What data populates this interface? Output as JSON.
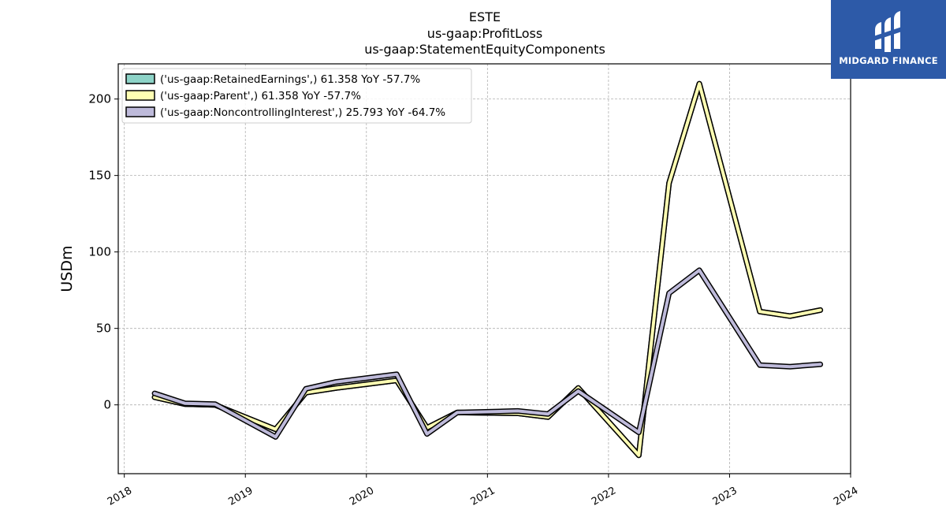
{
  "logo": {
    "text": "MIDGARD FINANCE",
    "background": "#2d5aa8"
  },
  "chart_data": {
    "type": "line",
    "title_lines": [
      "ESTE",
      "us-gaap:ProfitLoss",
      "us-gaap:StatementEquityComponents"
    ],
    "xlabel": "",
    "ylabel": "USDm",
    "xlim": [
      2017.95,
      2024.0
    ],
    "ylim": [
      -45,
      223
    ],
    "x_ticks": [
      2018,
      2019,
      2020,
      2021,
      2022,
      2023,
      2024
    ],
    "x_tick_labels": [
      "2018",
      "2019",
      "2020",
      "2021",
      "2022",
      "2023",
      "2024"
    ],
    "y_ticks": [
      0,
      50,
      100,
      150,
      200
    ],
    "y_tick_labels": [
      "0",
      "50",
      "100",
      "150",
      "200"
    ],
    "grid": true,
    "legend_position": "top-left",
    "series": [
      {
        "name": "('us-gaap:RetainedEarnings',) 61.358 YoY -57.7%",
        "color": "#8dd3c7",
        "x": [
          2018.25,
          2018.5,
          2018.75,
          2019.25,
          2019.5,
          2019.75,
          2020.25,
          2020.5,
          2020.75,
          2021.25,
          2021.5,
          2021.75,
          2022.25,
          2022.5,
          2022.75,
          2023.25,
          2023.5,
          2023.75
        ],
        "values": [
          5,
          0.5,
          0,
          -16,
          8,
          11,
          16,
          -15,
          -5,
          -5.5,
          -8,
          11,
          -33,
          145,
          210,
          61,
          58,
          62
        ]
      },
      {
        "name": "('us-gaap:Parent',) 61.358 YoY -57.7%",
        "color": "#ffffb3",
        "x": [
          2018.25,
          2018.5,
          2018.75,
          2019.25,
          2019.5,
          2019.75,
          2020.25,
          2020.5,
          2020.75,
          2021.25,
          2021.5,
          2021.75,
          2022.25,
          2022.5,
          2022.75,
          2023.25,
          2023.5,
          2023.75
        ],
        "values": [
          5,
          0.5,
          0,
          -16,
          8,
          11,
          16,
          -15,
          -5,
          -5.5,
          -8,
          11,
          -33,
          145,
          210,
          61,
          58,
          62
        ]
      },
      {
        "name": "('us-gaap:NoncontrollingInterest',) 25.793 YoY -64.7%",
        "color": "#bebada",
        "x": [
          2018.25,
          2018.5,
          2018.75,
          2019.25,
          2019.5,
          2019.75,
          2020.25,
          2020.5,
          2020.75,
          2021.25,
          2021.5,
          2021.75,
          2022.25,
          2022.5,
          2022.75,
          2023.25,
          2023.5,
          2023.75
        ],
        "values": [
          7.5,
          1,
          0.5,
          -21,
          10.5,
          15,
          20,
          -19,
          -5,
          -4,
          -6,
          9,
          -18,
          73,
          88,
          26,
          25,
          26.5
        ]
      }
    ]
  }
}
